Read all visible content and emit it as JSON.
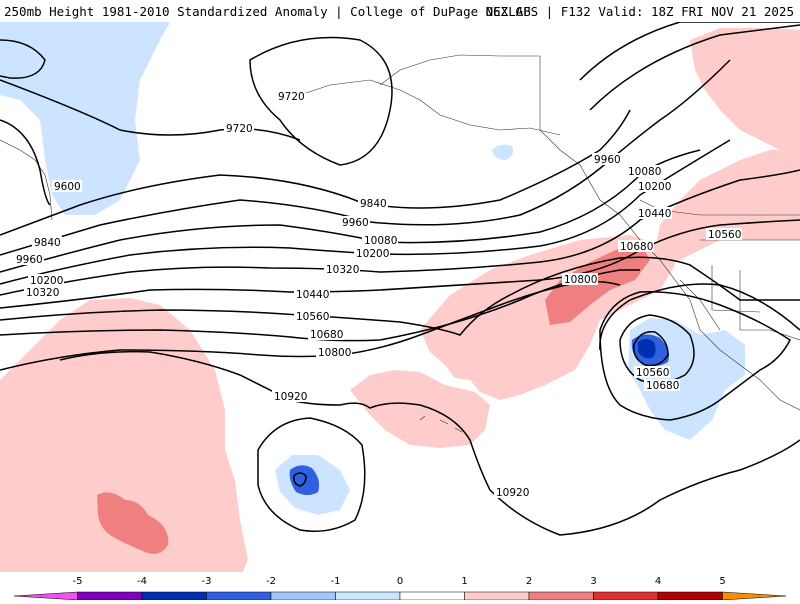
{
  "header": {
    "title": "250mb Height 1981-2010 Standardized Anomaly | College of DuPage NEXLAB",
    "run_info": "06Z GFS | F132 Valid: 18Z FRI NOV 21 2025"
  },
  "contour_labels": {
    "c9720a": "9720",
    "c9720b": "9720",
    "c9600": "9600",
    "c9840a": "9840",
    "c9960a": "9960",
    "c10200a": "10200",
    "c10320a": "10320",
    "c9840b": "9840",
    "c9960b": "9960",
    "c10080": "10080",
    "c10200b": "10200",
    "c10320b": "10320",
    "c10440": "10440",
    "c10560": "10560",
    "c10680": "10680",
    "c10800": "10800",
    "c10920a": "10920",
    "c10920b": "10920",
    "c9960c": "9960",
    "c10080b": "10080",
    "c10200c": "10200",
    "c10440b": "10440",
    "c10680b": "10680",
    "c10800b": "10800",
    "c10560b": "10560",
    "c10560c": "10560",
    "c10680c": "10680"
  },
  "colorbar": {
    "ticks": [
      "-5",
      "-4",
      "-3",
      "-2",
      "-1",
      "0",
      "1",
      "2",
      "3",
      "4",
      "5"
    ],
    "colors": {
      "m5": "#f050f0",
      "m4": "#8000c0",
      "m3": "#0030b0",
      "m2": "#3060e0",
      "m1": "#a0c8ff",
      "m0": "#cce4ff",
      "p0": "#ffffff",
      "p1": "#ffcccc",
      "p2": "#f08080",
      "p3": "#e03030",
      "p4": "#b00000",
      "p5": "#ff8c00"
    }
  }
}
